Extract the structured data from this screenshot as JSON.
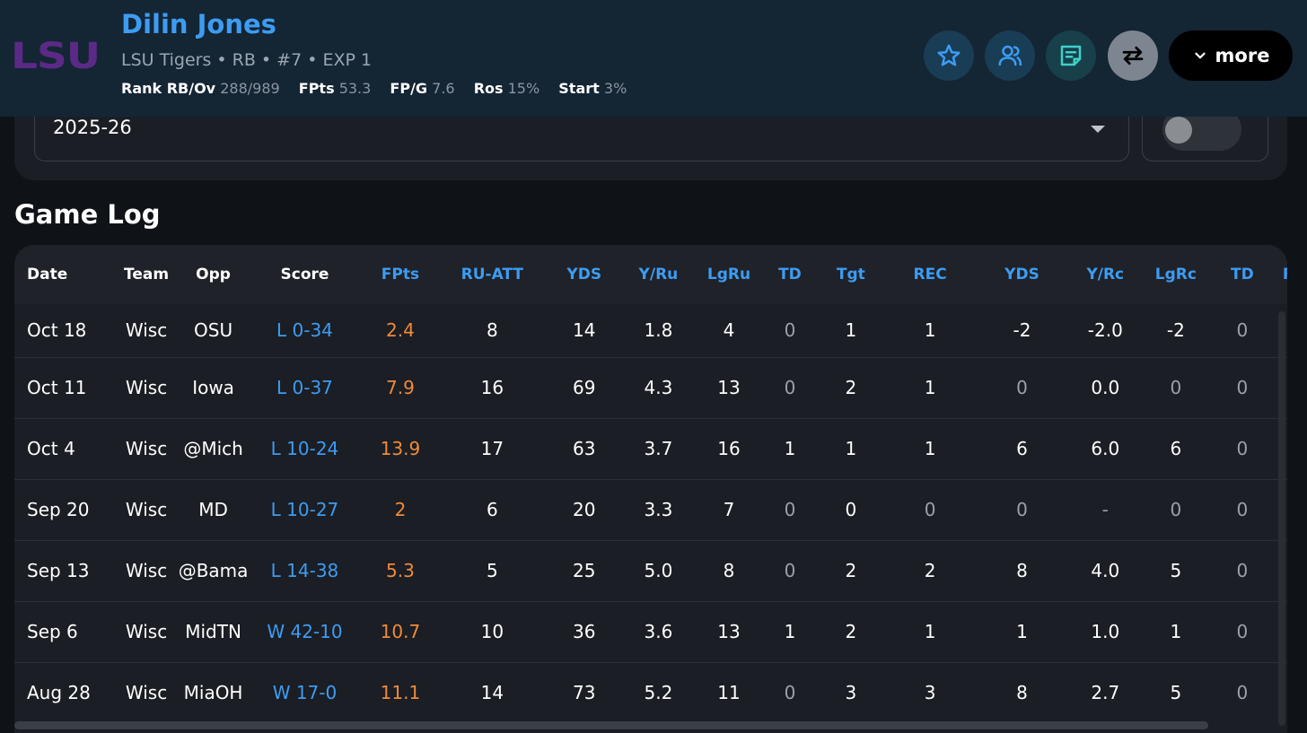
{
  "header": {
    "logo_text": "LSU",
    "player_name": "Dilin Jones",
    "subtitle": "LSU Tigers • RB • #7 • EXP 1",
    "stats": [
      {
        "label": "Rank RB/Ov",
        "value": "288/989"
      },
      {
        "label": "FPts",
        "value": "53.3"
      },
      {
        "label": "FP/G",
        "value": "7.6"
      },
      {
        "label": "Ros",
        "value": "15%"
      },
      {
        "label": "Start",
        "value": "3%"
      }
    ],
    "buttons": {
      "favorite_icon": "star-icon",
      "compare_icon": "users-icon",
      "notes_icon": "note-icon",
      "trade_icon": "swap-arrows-icon",
      "more_label": "more"
    },
    "colors": {
      "background": "#142534",
      "name": "#3d9cf2",
      "logo": "#5b2a86",
      "btn_favorite": "#1a3d56",
      "btn_compare": "#1a3d56",
      "btn_notes": "#17404a",
      "btn_trade": "#7d8590"
    }
  },
  "filters": {
    "season": "2025-26",
    "toggle_on": false
  },
  "game_log": {
    "title": "Game Log",
    "columns": [
      "Date",
      "Team",
      "Opp",
      "Score",
      "FPts",
      "RU-ATT",
      "YDS",
      "Y/Ru",
      "LgRu",
      "TD",
      "Tgt",
      "REC",
      "YDS",
      "Y/Rc",
      "LgRc",
      "TD",
      "F"
    ],
    "rows": [
      {
        "date": "Oct 18",
        "team": "Wisc",
        "opp": "OSU",
        "score": "L 0-34",
        "fpts": "2.4",
        "ru_att": "8",
        "ru_yds": "14",
        "y_ru": "1.8",
        "lg_ru": "4",
        "ru_td": "0",
        "tgt": "1",
        "rec": "1",
        "rec_yds": "-2",
        "y_rc": "-2.0",
        "lg_rc": "-2",
        "rec_td": "0"
      },
      {
        "date": "Oct 11",
        "team": "Wisc",
        "opp": "Iowa",
        "score": "L 0-37",
        "fpts": "7.9",
        "ru_att": "16",
        "ru_yds": "69",
        "y_ru": "4.3",
        "lg_ru": "13",
        "ru_td": "0",
        "tgt": "2",
        "rec": "1",
        "rec_yds": "0",
        "y_rc": "0.0",
        "lg_rc": "0",
        "rec_td": "0"
      },
      {
        "date": "Oct 4",
        "team": "Wisc",
        "opp": "@Mich",
        "score": "L 10-24",
        "fpts": "13.9",
        "ru_att": "17",
        "ru_yds": "63",
        "y_ru": "3.7",
        "lg_ru": "16",
        "ru_td": "1",
        "tgt": "1",
        "rec": "1",
        "rec_yds": "6",
        "y_rc": "6.0",
        "lg_rc": "6",
        "rec_td": "0"
      },
      {
        "date": "Sep 20",
        "team": "Wisc",
        "opp": "MD",
        "score": "L 10-27",
        "fpts": "2",
        "ru_att": "6",
        "ru_yds": "20",
        "y_ru": "3.3",
        "lg_ru": "7",
        "ru_td": "0",
        "tgt": "0",
        "rec": "0",
        "rec_yds": "0",
        "y_rc": "-",
        "lg_rc": "0",
        "rec_td": "0"
      },
      {
        "date": "Sep 13",
        "team": "Wisc",
        "opp": "@Bama",
        "score": "L 14-38",
        "fpts": "5.3",
        "ru_att": "5",
        "ru_yds": "25",
        "y_ru": "5.0",
        "lg_ru": "8",
        "ru_td": "0",
        "tgt": "2",
        "rec": "2",
        "rec_yds": "8",
        "y_rc": "4.0",
        "lg_rc": "5",
        "rec_td": "0"
      },
      {
        "date": "Sep 6",
        "team": "Wisc",
        "opp": "MidTN",
        "score": "W 42-10",
        "fpts": "10.7",
        "ru_att": "10",
        "ru_yds": "36",
        "y_ru": "3.6",
        "lg_ru": "13",
        "ru_td": "1",
        "tgt": "2",
        "rec": "1",
        "rec_yds": "1",
        "y_rc": "1.0",
        "lg_rc": "1",
        "rec_td": "0"
      },
      {
        "date": "Aug 28",
        "team": "Wisc",
        "opp": "MiaOH",
        "score": "W 17-0",
        "fpts": "11.1",
        "ru_att": "14",
        "ru_yds": "73",
        "y_ru": "5.2",
        "lg_ru": "11",
        "ru_td": "0",
        "tgt": "3",
        "rec": "3",
        "rec_yds": "8",
        "y_rc": "2.7",
        "lg_rc": "5",
        "rec_td": "0"
      }
    ]
  }
}
